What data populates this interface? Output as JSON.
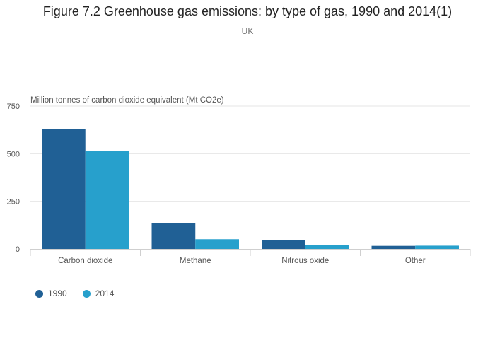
{
  "header": {
    "title": "Figure 7.2 Greenhouse gas emissions: by type of gas, 1990 and 2014(1)",
    "subtitle": "UK"
  },
  "chart_data": {
    "type": "bar",
    "title": "Figure 7.2 Greenhouse gas emissions: by type of gas, 1990 and 2014(1)",
    "subtitle": "UK",
    "xlabel": "",
    "ylabel": "Million tonnes of carbon dioxide equivalent (Mt CO2e)",
    "categories": [
      "Carbon dioxide",
      "Methane",
      "Nitrous oxide",
      "Other"
    ],
    "series": [
      {
        "name": "1990",
        "color": "#206095",
        "values": [
          629,
          135,
          46,
          16
        ]
      },
      {
        "name": "2014",
        "color": "#27a0cc",
        "values": [
          514,
          51,
          21,
          17
        ]
      }
    ],
    "ylim": [
      0,
      750
    ],
    "yticks": [
      0,
      250,
      500,
      750
    ],
    "grid": true,
    "legend": "bottom-left"
  }
}
